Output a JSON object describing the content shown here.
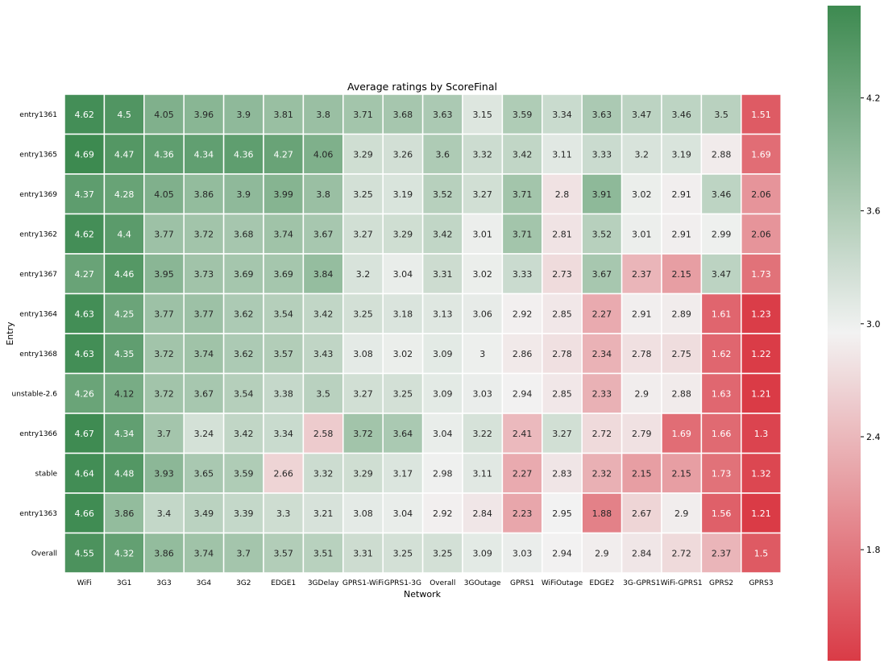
{
  "chart_data": {
    "type": "heatmap",
    "title": "Average ratings by ScoreFinal",
    "xlabel": "Network",
    "ylabel": "Entry",
    "columns": [
      "WiFi",
      "3G1",
      "3G3",
      "3G4",
      "3G2",
      "EDGE1",
      "3GDelay",
      "GPRS1-WiFi",
      "GPRS1-3G",
      "Overall",
      "3GOutage",
      "GPRS1",
      "WiFiOutage",
      "EDGE2",
      "3G-GPRS1",
      "WiFi-GPRS1",
      "GPRS2",
      "GPRS3"
    ],
    "rows": [
      "entry1361",
      "entry1365",
      "entry1369",
      "entry1362",
      "entry1367",
      "entry1364",
      "entry1368",
      "unstable-2.6",
      "entry1366",
      "stable",
      "entry1363",
      "Overall"
    ],
    "values": [
      [
        4.62,
        4.5,
        4.05,
        3.96,
        3.9,
        3.81,
        3.8,
        3.71,
        3.68,
        3.63,
        3.15,
        3.59,
        3.34,
        3.63,
        3.47,
        3.46,
        3.5,
        1.51
      ],
      [
        4.69,
        4.47,
        4.36,
        4.34,
        4.36,
        4.27,
        4.06,
        3.29,
        3.26,
        3.6,
        3.32,
        3.42,
        3.11,
        3.33,
        3.2,
        3.19,
        2.88,
        1.69
      ],
      [
        4.37,
        4.28,
        4.05,
        3.86,
        3.9,
        3.99,
        3.8,
        3.25,
        3.19,
        3.52,
        3.27,
        3.71,
        2.8,
        3.91,
        3.02,
        2.91,
        3.46,
        2.06
      ],
      [
        4.62,
        4.4,
        3.77,
        3.72,
        3.68,
        3.74,
        3.67,
        3.27,
        3.29,
        3.42,
        3.01,
        3.71,
        2.81,
        3.52,
        3.01,
        2.91,
        2.99,
        2.06
      ],
      [
        4.27,
        4.46,
        3.95,
        3.73,
        3.69,
        3.69,
        3.84,
        3.2,
        3.04,
        3.31,
        3.02,
        3.33,
        2.73,
        3.67,
        2.37,
        2.15,
        3.47,
        1.73
      ],
      [
        4.63,
        4.25,
        3.77,
        3.77,
        3.62,
        3.54,
        3.42,
        3.25,
        3.18,
        3.13,
        3.06,
        2.92,
        2.85,
        2.27,
        2.91,
        2.89,
        1.61,
        1.23
      ],
      [
        4.63,
        4.35,
        3.72,
        3.74,
        3.62,
        3.57,
        3.43,
        3.08,
        3.02,
        3.09,
        3,
        2.86,
        2.78,
        2.34,
        2.78,
        2.75,
        1.62,
        1.22
      ],
      [
        4.26,
        4.12,
        3.72,
        3.67,
        3.54,
        3.38,
        3.5,
        3.27,
        3.25,
        3.09,
        3.03,
        2.94,
        2.85,
        2.33,
        2.9,
        2.88,
        1.63,
        1.21
      ],
      [
        4.67,
        4.34,
        3.7,
        3.24,
        3.42,
        3.34,
        2.58,
        3.72,
        3.64,
        3.04,
        3.22,
        2.41,
        3.27,
        2.72,
        2.79,
        1.69,
        1.66,
        1.3
      ],
      [
        4.64,
        4.48,
        3.93,
        3.65,
        3.59,
        2.66,
        3.32,
        3.29,
        3.17,
        2.98,
        3.11,
        2.27,
        2.83,
        2.32,
        2.15,
        2.15,
        1.73,
        1.32
      ],
      [
        4.66,
        3.86,
        3.4,
        3.49,
        3.39,
        3.3,
        3.21,
        3.08,
        3.04,
        2.92,
        2.84,
        2.23,
        2.95,
        1.88,
        2.67,
        2.9,
        1.56,
        1.21
      ],
      [
        4.55,
        4.32,
        3.86,
        3.74,
        3.7,
        3.57,
        3.51,
        3.31,
        3.25,
        3.25,
        3.09,
        3.03,
        2.94,
        2.9,
        2.84,
        2.72,
        2.37,
        1.5
      ]
    ],
    "colorbar": {
      "vmin": 1.21,
      "vmax": 4.69,
      "ticks": [
        "4.2",
        "3.6",
        "3.0",
        "2.4",
        "1.8"
      ],
      "tick_values": [
        4.2,
        3.6,
        3.0,
        2.4,
        1.8
      ]
    },
    "colors": {
      "low": "#da3b46",
      "mid": "#f2f2f2",
      "high": "#3d8a50"
    },
    "grid": false,
    "legend": "right"
  }
}
